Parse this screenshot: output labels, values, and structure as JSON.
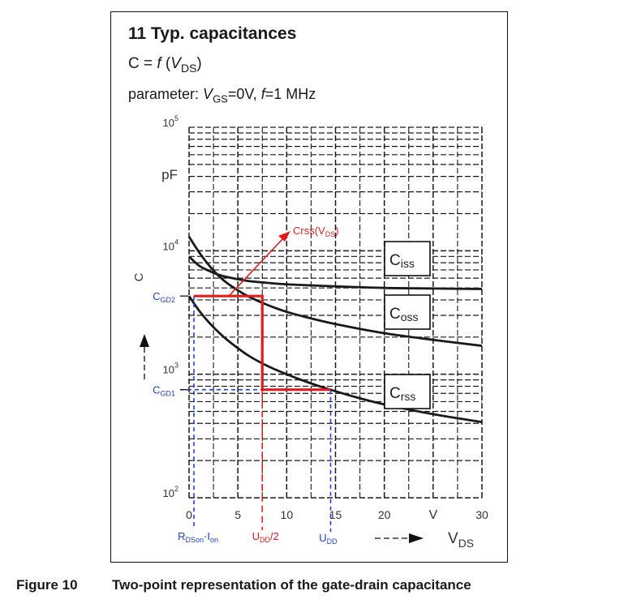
{
  "header": {
    "title": "11 Typ. capacitances",
    "function_prefix": "C = ",
    "function_f": "f",
    "function_open": " (",
    "function_var": "V",
    "function_sub": "DS",
    "function_close": ")",
    "param_prefix": "parameter: ",
    "param_v": "V",
    "param_sub": "GS",
    "param_mid": "=0V, ",
    "param_f": "f",
    "param_end": "=1 MHz"
  },
  "caption": {
    "number": "Figure 10",
    "text": "Two-point representation of the gate-drain capacitance"
  },
  "chart_data": {
    "type": "line",
    "title": "11 Typ. capacitances",
    "xlabel": "V",
    "xlabel_sub": "DS",
    "x_unit": "V",
    "ylabel": "C",
    "y_unit": "pF",
    "y_scale": "log",
    "xlim": [
      0,
      30
    ],
    "ylim": [
      100,
      100000
    ],
    "x_ticks": [
      {
        "value": 0,
        "label": "0"
      },
      {
        "value": 5,
        "label": "5"
      },
      {
        "value": 10,
        "label": "10"
      },
      {
        "value": 15,
        "label": "15"
      },
      {
        "value": 20,
        "label": "20"
      },
      {
        "value": 30,
        "label": "30"
      }
    ],
    "y_ticks": [
      {
        "value": 100,
        "base": "10",
        "exp": "2"
      },
      {
        "value": 1000,
        "base": "10",
        "exp": "3"
      },
      {
        "value": 10000,
        "base": "10",
        "exp": "4"
      },
      {
        "value": 100000,
        "base": "10",
        "exp": "5"
      }
    ],
    "grid": true,
    "series": [
      {
        "name": "Ciss",
        "label_main": "C",
        "label_sub": "iss",
        "x": [
          0,
          1,
          2,
          3,
          4,
          6,
          8,
          10,
          15,
          20,
          25,
          30
        ],
        "y": [
          9000,
          7600,
          6900,
          6400,
          6100,
          5700,
          5500,
          5350,
          5150,
          5000,
          4950,
          4900
        ]
      },
      {
        "name": "Coss",
        "label_main": "C",
        "label_sub": "oss",
        "x": [
          0,
          1,
          2,
          3,
          4,
          6,
          8,
          10,
          12,
          15,
          20,
          25,
          30
        ],
        "y": [
          13000,
          9800,
          7700,
          6300,
          5400,
          4300,
          3650,
          3200,
          2900,
          2550,
          2150,
          1900,
          1700
        ]
      },
      {
        "name": "Crss",
        "label_main": "C",
        "label_sub": "rss",
        "x": [
          0,
          1,
          2,
          3,
          4,
          6,
          8,
          10,
          12,
          14,
          17,
          20,
          25,
          30
        ],
        "y": [
          4300,
          3300,
          2650,
          2200,
          1870,
          1430,
          1170,
          1000,
          870,
          770,
          655,
          570,
          475,
          410
        ]
      }
    ],
    "annotations": {
      "crss_arrow": {
        "main": "Crss(V",
        "sub": "DS",
        "close": ")"
      },
      "cgd2": {
        "main": "C",
        "sub": "GD2",
        "value": 4300
      },
      "cgd1": {
        "main": "C",
        "sub": "GD1",
        "value": 750
      },
      "rdson": {
        "main": "R",
        "sub1": "DSon",
        "mid": "·I",
        "sub2": "on",
        "x": 0.5
      },
      "udd_half": {
        "main": "U",
        "sub": "DD",
        "end": "/2",
        "x": 7.5
      },
      "udd": {
        "main": "U",
        "sub": "DD",
        "x": 14.5
      }
    },
    "two_point_step": {
      "x": [
        0.5,
        7.5,
        7.5,
        14.5
      ],
      "y": [
        4300,
        4300,
        750,
        750
      ]
    },
    "colors": {
      "curve": "#1a1a1a",
      "grid": "#1a1a1a",
      "red": "#e31b1b",
      "blue": "#1f3fd0"
    }
  }
}
